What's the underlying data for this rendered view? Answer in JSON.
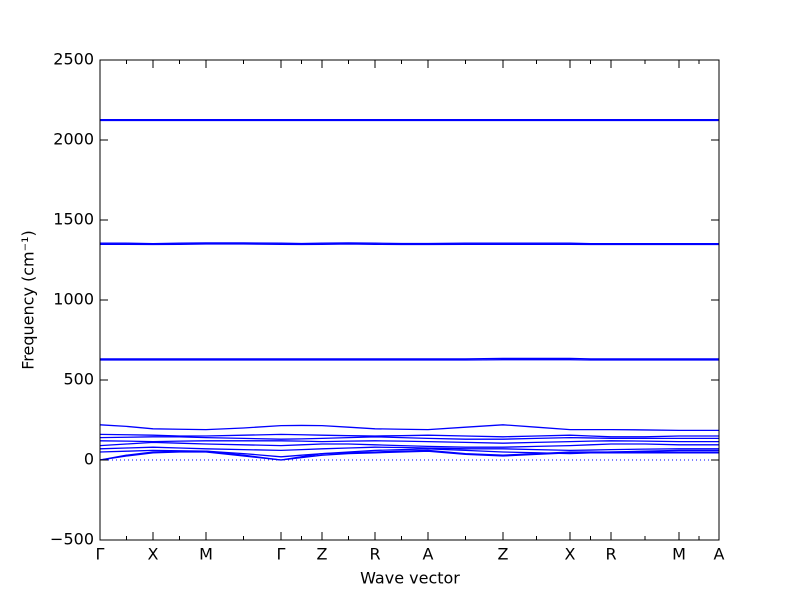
{
  "chart_data": {
    "type": "line",
    "x_label": "Wave vector",
    "y_label": "Frequency (cm⁻¹)",
    "x": [
      0,
      0.265,
      0.53,
      0.795,
      1.06,
      1.435,
      1.81,
      2.015,
      2.22,
      2.485,
      2.75,
      3.015,
      3.28,
      3.655,
      4.03,
      4.365,
      4.7,
      4.905,
      5.11,
      5.45,
      5.79,
      5.99,
      6.19
    ],
    "xlim": [
      0,
      6.19
    ],
    "xticks": [
      {
        "value": 0,
        "label": "Γ"
      },
      {
        "value": 0.53,
        "label": "X"
      },
      {
        "value": 1.06,
        "label": "M"
      },
      {
        "value": 1.81,
        "label": "Γ"
      },
      {
        "value": 2.22,
        "label": "Z"
      },
      {
        "value": 2.75,
        "label": "R"
      },
      {
        "value": 3.28,
        "label": "A"
      },
      {
        "value": 4.03,
        "label": "Z"
      },
      {
        "value": 4.7,
        "label": "X"
      },
      {
        "value": 5.11,
        "label": "R"
      },
      {
        "value": 5.79,
        "label": "M"
      },
      {
        "value": 6.19,
        "label": "A"
      }
    ],
    "ylim": [
      -500,
      2500
    ],
    "yticks": [
      {
        "value": -500,
        "label": "−500"
      },
      0,
      500,
      1000,
      1500,
      2000,
      2500
    ],
    "zero_line": true,
    "series": [
      {
        "color": "#0000ff",
        "values": [
          2127,
          2127,
          2127,
          2127,
          2127,
          2127,
          2127,
          2127,
          2127,
          2127,
          2127,
          2127,
          2127,
          2127,
          2127,
          2127,
          2127,
          2127,
          2127,
          2127,
          2127,
          2127,
          2127
        ]
      },
      {
        "color": "#0000ff",
        "values": [
          2122,
          2122,
          2122,
          2122,
          2122,
          2122,
          2122,
          2122,
          2122,
          2122,
          2122,
          2122,
          2122,
          2122,
          2122,
          2122,
          2122,
          2122,
          2122,
          2122,
          2122,
          2122,
          2122
        ]
      },
      {
        "color": "#0000ff",
        "values": [
          1355,
          1355,
          1352,
          1355,
          1357,
          1357,
          1355,
          1353,
          1355,
          1357,
          1355,
          1353,
          1353,
          1355,
          1355,
          1355,
          1355,
          1352,
          1352,
          1352,
          1352,
          1352,
          1352
        ]
      },
      {
        "color": "#0000ff",
        "values": [
          1348,
          1348,
          1347,
          1348,
          1350,
          1350,
          1348,
          1347,
          1348,
          1350,
          1348,
          1347,
          1347,
          1348,
          1348,
          1348,
          1348,
          1347,
          1347,
          1347,
          1347,
          1347,
          1347
        ]
      },
      {
        "color": "#0000ff",
        "values": [
          632,
          632,
          632,
          632,
          632,
          632,
          632,
          632,
          632,
          632,
          632,
          632,
          632,
          632,
          635,
          635,
          635,
          632,
          632,
          632,
          632,
          632,
          632
        ]
      },
      {
        "color": "#0000ff",
        "values": [
          625,
          625,
          625,
          625,
          625,
          625,
          625,
          625,
          625,
          625,
          625,
          625,
          625,
          625,
          627,
          627,
          627,
          625,
          625,
          625,
          625,
          625,
          625
        ]
      },
      {
        "color": "#0000ff",
        "values": [
          220,
          210,
          195,
          192,
          190,
          200,
          215,
          216,
          215,
          205,
          195,
          192,
          190,
          205,
          220,
          205,
          190,
          190,
          190,
          188,
          185,
          185,
          185
        ]
      },
      {
        "color": "#0000ff",
        "values": [
          160,
          158,
          155,
          150,
          150,
          155,
          160,
          158,
          155,
          152,
          150,
          152,
          155,
          150,
          145,
          150,
          155,
          150,
          145,
          145,
          150,
          150,
          150
        ]
      },
      {
        "color": "#0000ff",
        "values": [
          140,
          142,
          145,
          145,
          140,
          135,
          130,
          132,
          135,
          140,
          145,
          140,
          135,
          130,
          130,
          135,
          140,
          138,
          135,
          135,
          135,
          135,
          135
        ]
      },
      {
        "color": "#0000ff",
        "values": [
          120,
          118,
          115,
          118,
          120,
          120,
          120,
          118,
          115,
          118,
          120,
          118,
          115,
          110,
          105,
          110,
          115,
          118,
          120,
          118,
          115,
          115,
          115
        ]
      },
      {
        "color": "#0000ff",
        "values": [
          90,
          100,
          110,
          105,
          100,
          95,
          90,
          95,
          100,
          100,
          95,
          90,
          85,
          80,
          80,
          85,
          90,
          95,
          100,
          100,
          95,
          95,
          95
        ]
      },
      {
        "color": "#0000ff",
        "values": [
          70,
          75,
          80,
          75,
          70,
          65,
          60,
          65,
          70,
          75,
          80,
          78,
          75,
          70,
          70,
          65,
          60,
          62,
          65,
          68,
          70,
          70,
          70
        ]
      },
      {
        "color": "#0000ff",
        "values": [
          50,
          55,
          60,
          58,
          55,
          40,
          20,
          30,
          40,
          50,
          60,
          65,
          70,
          60,
          50,
          45,
          40,
          45,
          50,
          55,
          60,
          60,
          60
        ]
      },
      {
        "color": "#0000ff",
        "values": [
          0,
          30,
          50,
          55,
          55,
          30,
          0,
          20,
          40,
          45,
          50,
          55,
          60,
          40,
          30,
          40,
          50,
          50,
          50,
          50,
          50,
          50,
          50
        ]
      },
      {
        "color": "#0000ff",
        "values": [
          0,
          25,
          45,
          50,
          50,
          25,
          0,
          15,
          30,
          40,
          45,
          50,
          55,
          35,
          25,
          35,
          45,
          45,
          45,
          45,
          45,
          45,
          45
        ]
      }
    ]
  }
}
